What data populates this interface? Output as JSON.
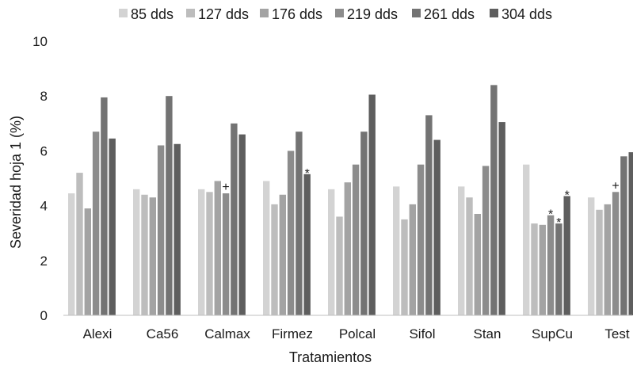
{
  "chart_data": {
    "type": "bar",
    "title": "",
    "xlabel": "Tratamientos",
    "ylabel": "Severidad hoja 1 (%)",
    "ylim": [
      0,
      10
    ],
    "yticks": [
      0,
      2,
      4,
      6,
      8,
      10
    ],
    "grid": false,
    "legend": "top",
    "categories": [
      "Alexi",
      "Ca56",
      "Calmax",
      "Firmez",
      "Polcal",
      "Sifol",
      "Stan",
      "SupCu",
      "Test"
    ],
    "series": [
      {
        "name": "85 dds",
        "color": "#d3d3d3",
        "values": [
          4.45,
          4.6,
          4.6,
          4.9,
          4.6,
          4.7,
          4.7,
          5.5,
          4.3
        ]
      },
      {
        "name": "127 dds",
        "color": "#bdbdbd",
        "values": [
          5.2,
          4.4,
          4.5,
          4.05,
          3.6,
          3.5,
          4.3,
          3.35,
          3.85
        ]
      },
      {
        "name": "176 dds",
        "color": "#a3a3a3",
        "values": [
          3.9,
          4.3,
          4.9,
          4.4,
          4.85,
          4.05,
          3.7,
          3.3,
          4.05
        ]
      },
      {
        "name": "219 dds",
        "color": "#8c8c8c",
        "values": [
          6.7,
          6.2,
          4.45,
          6.0,
          5.5,
          5.5,
          5.45,
          3.65,
          4.5
        ]
      },
      {
        "name": "261 dds",
        "color": "#737373",
        "values": [
          7.95,
          8.0,
          7.0,
          6.7,
          6.7,
          7.3,
          8.4,
          3.35,
          5.8
        ]
      },
      {
        "name": "304 dds",
        "color": "#5e5e5e",
        "values": [
          6.45,
          6.25,
          6.6,
          5.15,
          8.05,
          6.4,
          7.05,
          4.35,
          5.95
        ]
      }
    ],
    "annotations": [
      {
        "category": "Calmax",
        "series": "219 dds",
        "text": "+"
      },
      {
        "category": "Firmez",
        "series": "304 dds",
        "text": "*"
      },
      {
        "category": "SupCu",
        "series": "219 dds",
        "text": "*"
      },
      {
        "category": "SupCu",
        "series": "261 dds",
        "text": "*"
      },
      {
        "category": "SupCu",
        "series": "304 dds",
        "text": "*"
      },
      {
        "category": "Test",
        "series": "219 dds",
        "text": "+"
      }
    ]
  }
}
